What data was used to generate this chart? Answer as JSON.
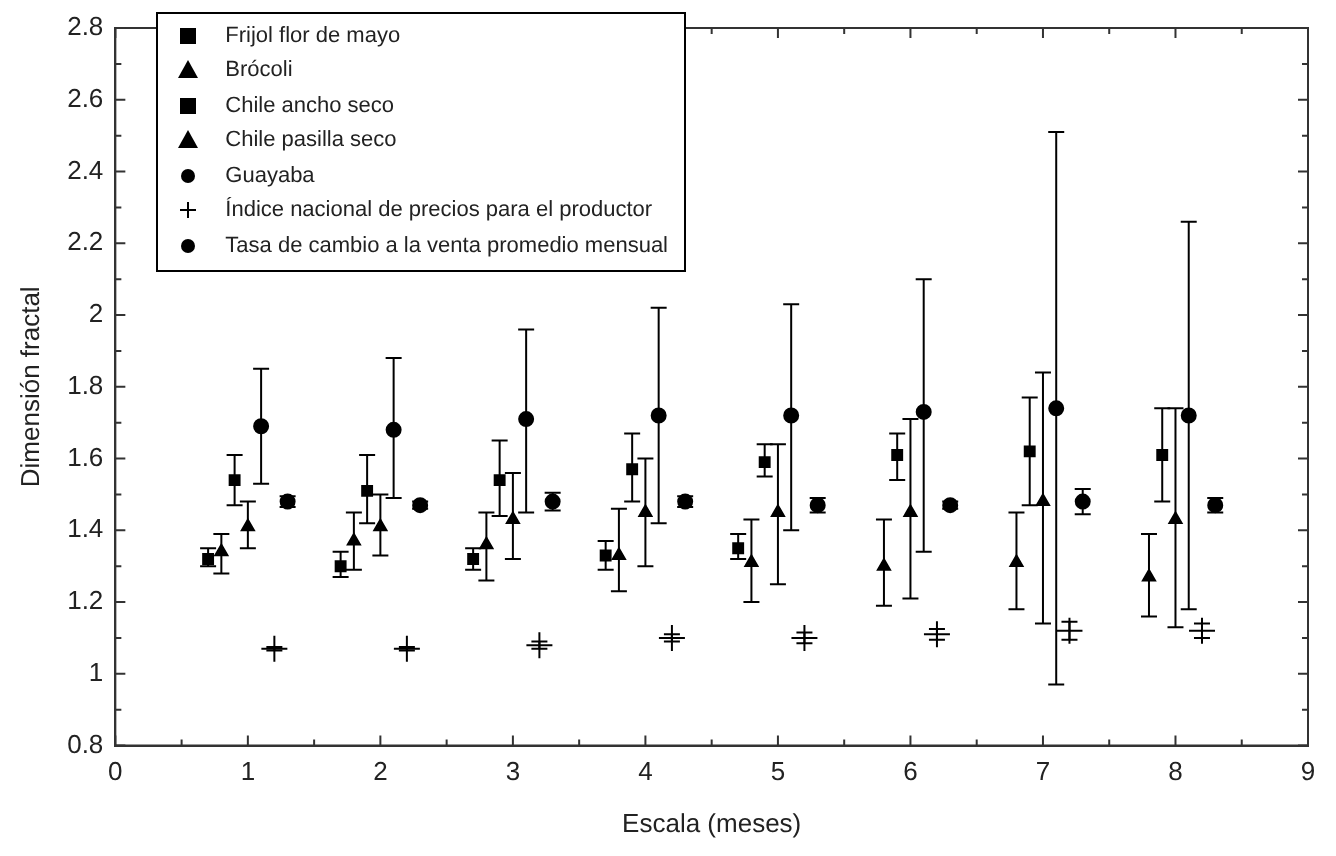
{
  "chart_data": {
    "type": "scatter",
    "xlabel": "Escala (meses)",
    "ylabel": "Dimensión fractal",
    "xlim": [
      0,
      9
    ],
    "xticks": [
      0,
      {
        "value": 0.5,
        "label": null
      },
      1,
      {
        "value": 1.5,
        "label": null
      },
      2,
      {
        "value": 2.5,
        "label": null
      },
      3,
      {
        "value": 3.5,
        "label": null
      },
      4,
      {
        "value": 4.5,
        "label": null
      },
      5,
      {
        "value": 5.5,
        "label": null
      },
      6,
      {
        "value": 6.5,
        "label": null
      },
      7,
      {
        "value": 7.5,
        "label": null
      },
      8,
      {
        "value": 8.5,
        "label": null
      },
      9
    ],
    "ylim": [
      0.8,
      2.8
    ],
    "yticks": [
      0.8,
      {
        "value": 0.9,
        "label": null
      },
      1,
      {
        "value": 1.1,
        "label": null
      },
      1.2,
      {
        "value": 1.3,
        "label": null
      },
      1.4,
      {
        "value": 1.5,
        "label": null
      },
      1.6,
      {
        "value": 1.7,
        "label": null
      },
      1.8,
      {
        "value": 1.9,
        "label": null
      },
      2,
      {
        "value": 2.1,
        "label": null
      },
      2.2,
      {
        "value": 2.3,
        "label": null
      },
      2.4,
      {
        "value": 2.5,
        "label": null
      },
      2.6,
      {
        "value": 2.7,
        "label": null
      },
      2.8
    ],
    "grid": false,
    "legend": "top left",
    "series": [
      {
        "name": "Frijol flor de mayo",
        "color": "#000000",
        "marker": "square",
        "x": [
          0.7,
          1.7,
          2.7,
          3.7,
          4.7
        ],
        "values": [
          1.32,
          1.3,
          1.32,
          1.33,
          1.35
        ],
        "errors": [
          [
            1.3,
            1.35
          ],
          [
            1.27,
            1.34
          ],
          [
            1.29,
            1.35
          ],
          [
            1.29,
            1.37
          ],
          [
            1.32,
            1.39
          ]
        ]
      },
      {
        "name": "Brócoli",
        "color": "#000000",
        "marker": "triangle",
        "x": [
          0.8,
          1.8,
          2.8,
          3.8,
          4.8,
          5.8,
          6.8,
          7.8
        ],
        "values": [
          1.34,
          1.37,
          1.36,
          1.33,
          1.31,
          1.3,
          1.31,
          1.27
        ],
        "errors": [
          [
            1.28,
            1.39
          ],
          [
            1.29,
            1.45
          ],
          [
            1.26,
            1.45
          ],
          [
            1.23,
            1.46
          ],
          [
            1.2,
            1.43
          ],
          [
            1.19,
            1.43
          ],
          [
            1.18,
            1.45
          ],
          [
            1.16,
            1.39
          ]
        ]
      },
      {
        "name": "Chile ancho seco",
        "color": "#000000",
        "marker": "square",
        "x": [
          0.9,
          1.9,
          2.9,
          3.9,
          4.9,
          5.9,
          6.9,
          7.9
        ],
        "values": [
          1.54,
          1.51,
          1.54,
          1.57,
          1.59,
          1.61,
          1.62,
          1.61
        ],
        "errors": [
          [
            1.47,
            1.61
          ],
          [
            1.42,
            1.61
          ],
          [
            1.44,
            1.65
          ],
          [
            1.48,
            1.67
          ],
          [
            1.55,
            1.64
          ],
          [
            1.54,
            1.67
          ],
          [
            1.47,
            1.77
          ],
          [
            1.48,
            1.74
          ]
        ]
      },
      {
        "name": "Chile pasilla seco",
        "color": "#000000",
        "marker": "triangle",
        "x": [
          1,
          2,
          3,
          4,
          5,
          6,
          7,
          8
        ],
        "values": [
          1.41,
          1.41,
          1.43,
          1.45,
          1.45,
          1.45,
          1.48,
          1.43
        ],
        "errors": [
          [
            1.35,
            1.48
          ],
          [
            1.33,
            1.5
          ],
          [
            1.32,
            1.56
          ],
          [
            1.3,
            1.6
          ],
          [
            1.25,
            1.64
          ],
          [
            1.21,
            1.71
          ],
          [
            1.14,
            1.84
          ],
          [
            1.13,
            1.74
          ]
        ]
      },
      {
        "name": "Guayaba",
        "color": "#000000",
        "marker": "circle",
        "x": [
          1.1,
          2.1,
          3.1,
          4.1,
          5.1,
          6.1,
          7.1,
          8.1
        ],
        "values": [
          1.69,
          1.68,
          1.71,
          1.72,
          1.72,
          1.73,
          1.74,
          1.72
        ],
        "errors": [
          [
            1.53,
            1.85
          ],
          [
            1.49,
            1.88
          ],
          [
            1.45,
            1.96
          ],
          [
            1.42,
            2.02
          ],
          [
            1.4,
            2.03
          ],
          [
            1.34,
            2.1
          ],
          [
            0.97,
            2.51
          ],
          [
            1.18,
            2.26
          ]
        ]
      },
      {
        "name": "Índice nacional de precios para el productor",
        "color": "#000000",
        "marker": "cross",
        "x": [
          1.2,
          2.2,
          3.2,
          4.2,
          5.2,
          6.2,
          7.2,
          8.2
        ],
        "values": [
          1.07,
          1.07,
          1.08,
          1.1,
          1.1,
          1.11,
          1.12,
          1.12
        ],
        "errors": [
          0.005,
          0.005,
          0.01,
          0.01,
          0.015,
          0.015,
          0.025,
          0.02
        ]
      },
      {
        "name": "Tasa de cambio a la venta promedio mensual",
        "color": "#000000",
        "marker": "circle",
        "x": [
          1.3,
          2.3,
          3.3,
          4.3,
          5.3,
          6.3,
          7.3,
          8.3
        ],
        "values": [
          1.48,
          1.47,
          1.48,
          1.48,
          1.47,
          1.47,
          1.48,
          1.47
        ],
        "errors": [
          0.015,
          0.01,
          0.025,
          0.015,
          0.02,
          0.01,
          0.035,
          0.02
        ]
      }
    ]
  }
}
